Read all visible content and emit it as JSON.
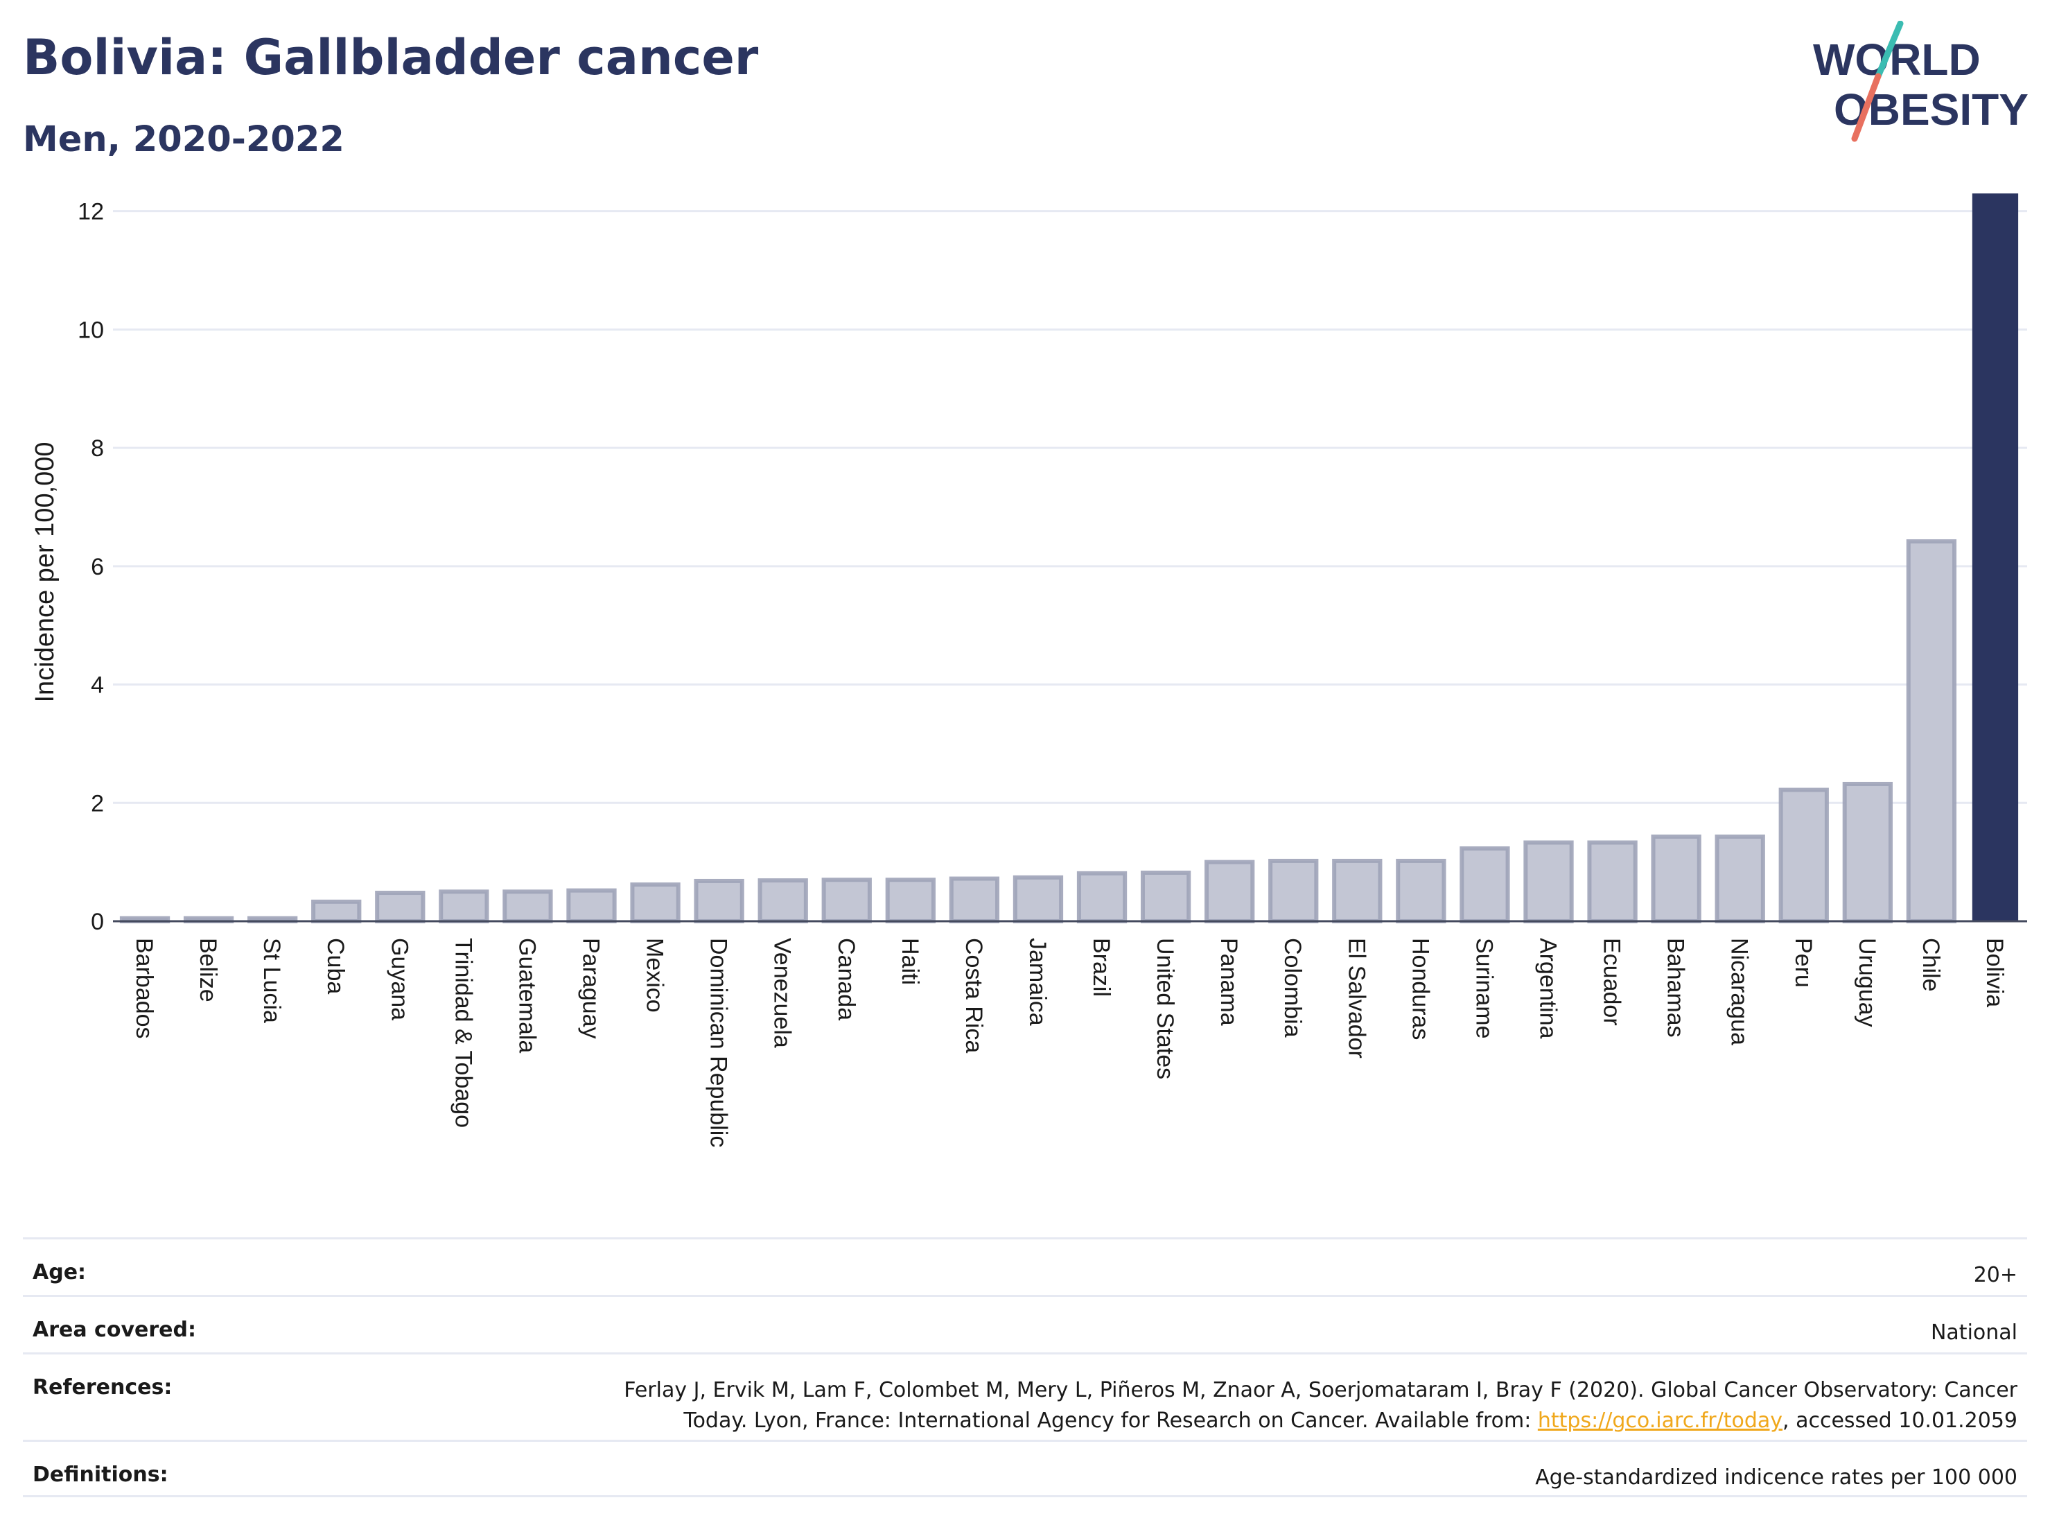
{
  "header": {
    "title": "Bolivia: Gallbladder cancer",
    "subtitle": "Men, 2020-2022"
  },
  "logo": {
    "line1": "WORLD",
    "line2": "OBESITY",
    "colors": {
      "text": "#2b3560",
      "slash_teal": "#3bbcb2",
      "slash_coral": "#e8705f"
    }
  },
  "chart_data": {
    "type": "bar",
    "title": "",
    "xlabel": "",
    "ylabel": "Incidence per 100,000",
    "ylim": [
      0,
      12.5
    ],
    "yticks": [
      0,
      2,
      4,
      6,
      8,
      10,
      12
    ],
    "grid": true,
    "highlight": "Bolivia",
    "colors": {
      "highlight": "#2b3560",
      "other_fill": "#c3c6d4",
      "other_stroke": "#9ea3b8",
      "grid": "#e6e9f2"
    },
    "categories": [
      "Barbados",
      "Belize",
      "St Lucia",
      "Cuba",
      "Guyana",
      "Trinidad & Tobago",
      "Guatemala",
      "Paraguay",
      "Mexico",
      "Dominican Republic",
      "Venezuela",
      "Canada",
      "Haiti",
      "Costa Rica",
      "Jamaica",
      "Brazil",
      "United States",
      "Panama",
      "Colombia",
      "El Salvador",
      "Honduras",
      "Suriname",
      "Argentina",
      "Ecuador",
      "Bahamas",
      "Nicaragua",
      "Peru",
      "Uruguay",
      "Chile",
      "Bolivia"
    ],
    "values": [
      0.05,
      0.05,
      0.05,
      0.33,
      0.48,
      0.5,
      0.5,
      0.52,
      0.62,
      0.68,
      0.69,
      0.7,
      0.7,
      0.72,
      0.74,
      0.81,
      0.82,
      1.0,
      1.02,
      1.02,
      1.02,
      1.23,
      1.33,
      1.33,
      1.43,
      1.43,
      2.22,
      2.32,
      6.42,
      12.3
    ]
  },
  "meta": {
    "age_label": "Age:",
    "age_value": "20+",
    "area_label": "Area covered:",
    "area_value": "National",
    "references_label": "References:",
    "references_text_1": "Ferlay J, Ervik M, Lam F, Colombet M, Mery L, Piñeros M, Znaor A, Soerjomataram I, Bray F (2020). Global Cancer Observatory: Cancer",
    "references_text_2": "Today. Lyon, France: International Agency for Research on Cancer. Available from: ",
    "references_link": "https://gco.iarc.fr/today",
    "references_text_3": ", accessed 10.01.2059",
    "definitions_label": "Definitions:",
    "definitions_value": "Age-standardized indicence rates per 100 000"
  }
}
